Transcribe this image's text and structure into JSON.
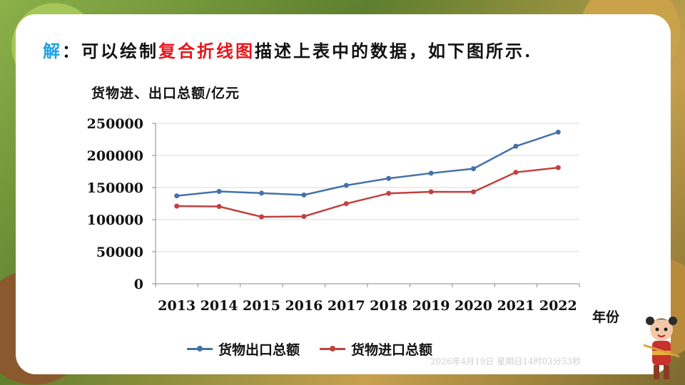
{
  "title": {
    "key": "解",
    "part1": "：可以绘制",
    "highlight": "复合折线图",
    "part2": "描述上表中的数据，如下图所示."
  },
  "timestamp": "2026年4月19日 星期日14时03分53秒",
  "chart_data": {
    "type": "line",
    "ylabel": "货物进、出口总额/亿元",
    "xlabel": "年份",
    "categories": [
      "2013",
      "2014",
      "2015",
      "2016",
      "2017",
      "2018",
      "2019",
      "2020",
      "2021",
      "2022"
    ],
    "ylim": [
      0,
      250000
    ],
    "yticks": [
      "0",
      "50000",
      "100000",
      "150000",
      "200000",
      "250000"
    ],
    "grid": true,
    "legend_position": "bottom",
    "series": [
      {
        "name": "货物出口总额",
        "color": "#4472a8",
        "values": [
          137000,
          143900,
          141200,
          138400,
          153300,
          164200,
          172300,
          179300,
          214300,
          236300
        ]
      },
      {
        "name": "货物进口总额",
        "color": "#c0413f",
        "values": [
          121000,
          120400,
          104300,
          104900,
          124800,
          140900,
          143300,
          143200,
          173700,
          181000
        ]
      }
    ]
  }
}
